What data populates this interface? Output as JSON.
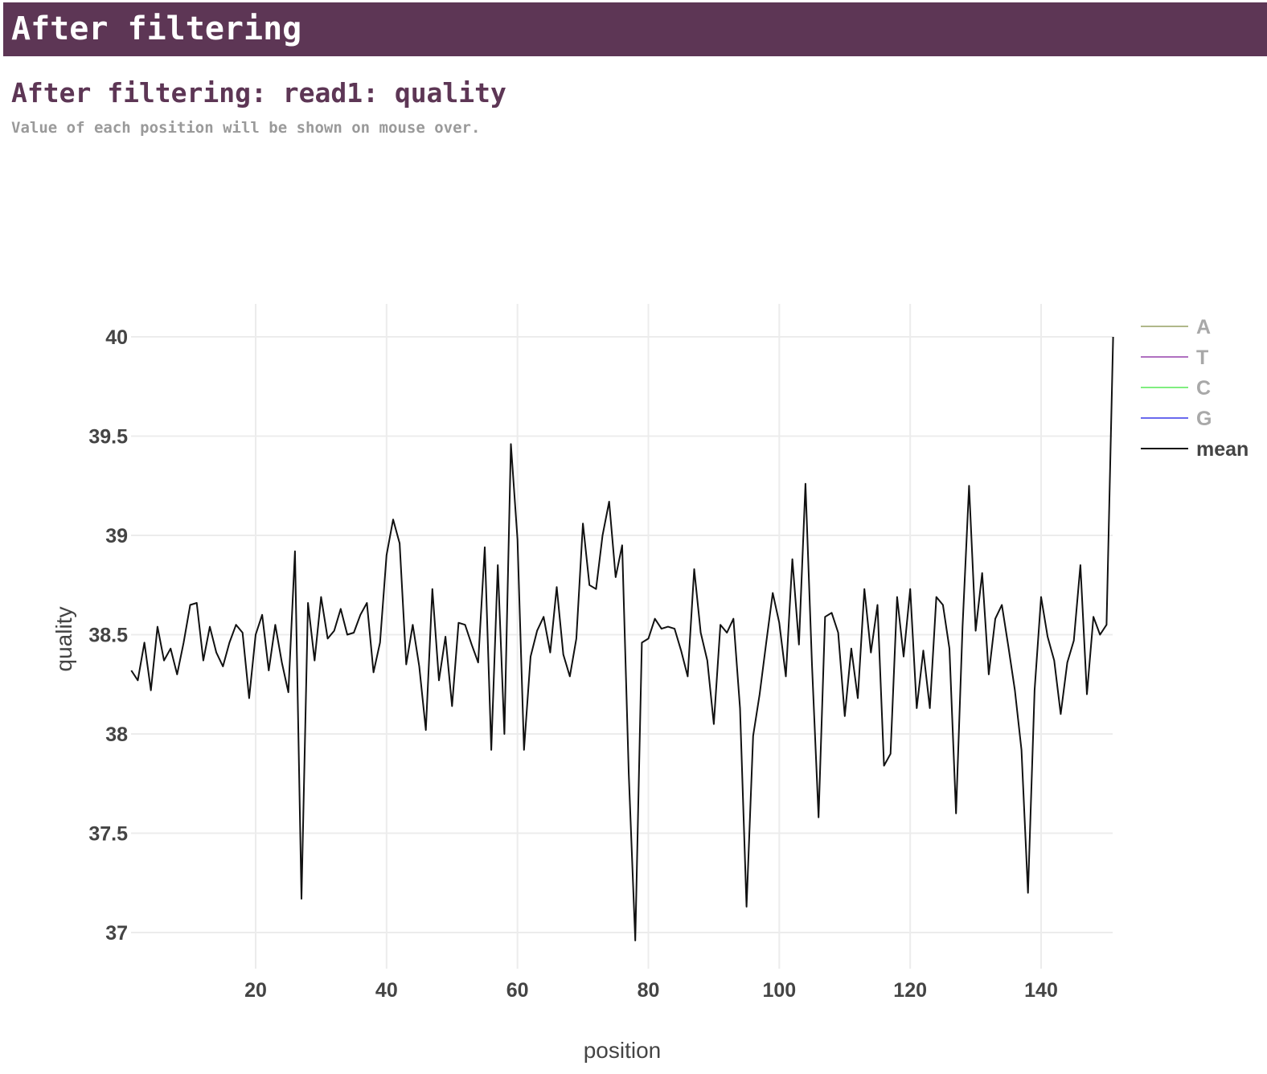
{
  "section": {
    "title": "After filtering"
  },
  "chart": {
    "title": "After filtering: read1: quality",
    "subtitle": "Value of each position will be shown on mouse over."
  },
  "chart_data": {
    "type": "line",
    "xlabel": "position",
    "ylabel": "quality",
    "xlim": [
      1,
      151
    ],
    "ylim": [
      36.8,
      40.2
    ],
    "xticks": [
      20,
      40,
      60,
      80,
      100,
      120,
      140
    ],
    "yticks": [
      37,
      37.5,
      38,
      38.5,
      39,
      39.5,
      40
    ],
    "ytick_labels": [
      "37",
      "37.5",
      "38",
      "38.5",
      "39",
      "39.5",
      "40"
    ],
    "grid": true,
    "legend_position": "top-right",
    "series": [
      {
        "name": "A",
        "color": "#b0b88a",
        "visible": false,
        "values": []
      },
      {
        "name": "T",
        "color": "#b070c0",
        "visible": false,
        "values": []
      },
      {
        "name": "C",
        "color": "#80ee80",
        "visible": false,
        "values": []
      },
      {
        "name": "G",
        "color": "#6a6aee",
        "visible": false,
        "values": []
      },
      {
        "name": "mean",
        "color": "#111111",
        "visible": true,
        "x": [
          1,
          2,
          3,
          4,
          5,
          6,
          7,
          8,
          9,
          10,
          11,
          12,
          13,
          14,
          15,
          16,
          17,
          18,
          19,
          20,
          21,
          22,
          23,
          24,
          25,
          26,
          27,
          28,
          29,
          30,
          31,
          32,
          33,
          34,
          35,
          36,
          37,
          38,
          39,
          40,
          41,
          42,
          43,
          44,
          45,
          46,
          47,
          48,
          49,
          50,
          51,
          52,
          53,
          54,
          55,
          56,
          57,
          58,
          59,
          60,
          61,
          62,
          63,
          64,
          65,
          66,
          67,
          68,
          69,
          70,
          71,
          72,
          73,
          74,
          75,
          76,
          77,
          78,
          79,
          80,
          81,
          82,
          83,
          84,
          85,
          86,
          87,
          88,
          89,
          90,
          91,
          92,
          93,
          94,
          95,
          96,
          97,
          98,
          99,
          100,
          101,
          102,
          103,
          104,
          105,
          106,
          107,
          108,
          109,
          110,
          111,
          112,
          113,
          114,
          115,
          116,
          117,
          118,
          119,
          120,
          121,
          122,
          123,
          124,
          125,
          126,
          127,
          128,
          129,
          130,
          131,
          132,
          133,
          134,
          135,
          136,
          137,
          138,
          139,
          140,
          141,
          142,
          143,
          144,
          145,
          146,
          147,
          148,
          149,
          150,
          151
        ],
        "values": [
          38.32,
          38.27,
          38.46,
          38.22,
          38.54,
          38.37,
          38.43,
          38.3,
          38.46,
          38.65,
          38.66,
          38.37,
          38.54,
          38.41,
          38.34,
          38.46,
          38.55,
          38.51,
          38.18,
          38.5,
          38.6,
          38.32,
          38.55,
          38.36,
          38.21,
          38.92,
          37.17,
          38.66,
          38.37,
          38.69,
          38.48,
          38.52,
          38.63,
          38.5,
          38.51,
          38.6,
          38.66,
          38.31,
          38.46,
          38.9,
          39.08,
          38.96,
          38.35,
          38.55,
          38.34,
          38.02,
          38.73,
          38.27,
          38.49,
          38.14,
          38.56,
          38.55,
          38.45,
          38.36,
          38.94,
          37.92,
          38.85,
          38.0,
          39.46,
          38.98,
          37.92,
          38.39,
          38.52,
          38.59,
          38.41,
          38.74,
          38.4,
          38.29,
          38.48,
          39.06,
          38.75,
          38.73,
          39.0,
          39.17,
          38.79,
          38.95,
          37.8,
          36.96,
          38.46,
          38.48,
          38.58,
          38.53,
          38.54,
          38.53,
          38.42,
          38.29,
          38.83,
          38.51,
          38.37,
          38.05,
          38.55,
          38.51,
          38.58,
          38.13,
          37.13,
          37.99,
          38.2,
          38.46,
          38.71,
          38.56,
          38.29,
          38.88,
          38.45,
          39.26,
          38.35,
          37.58,
          38.59,
          38.61,
          38.51,
          38.09,
          38.43,
          38.18,
          38.73,
          38.41,
          38.65,
          37.84,
          37.9,
          38.69,
          38.39,
          38.73,
          38.13,
          38.42,
          38.13,
          38.69,
          38.65,
          38.43,
          37.6,
          38.54,
          39.25,
          38.52,
          38.81,
          38.3,
          38.58,
          38.65,
          38.44,
          38.22,
          37.92,
          37.2,
          38.22,
          38.69,
          38.49,
          38.37,
          38.1,
          38.36,
          38.47,
          38.85,
          38.2,
          38.59,
          38.5,
          38.55,
          40.0
        ]
      }
    ]
  }
}
